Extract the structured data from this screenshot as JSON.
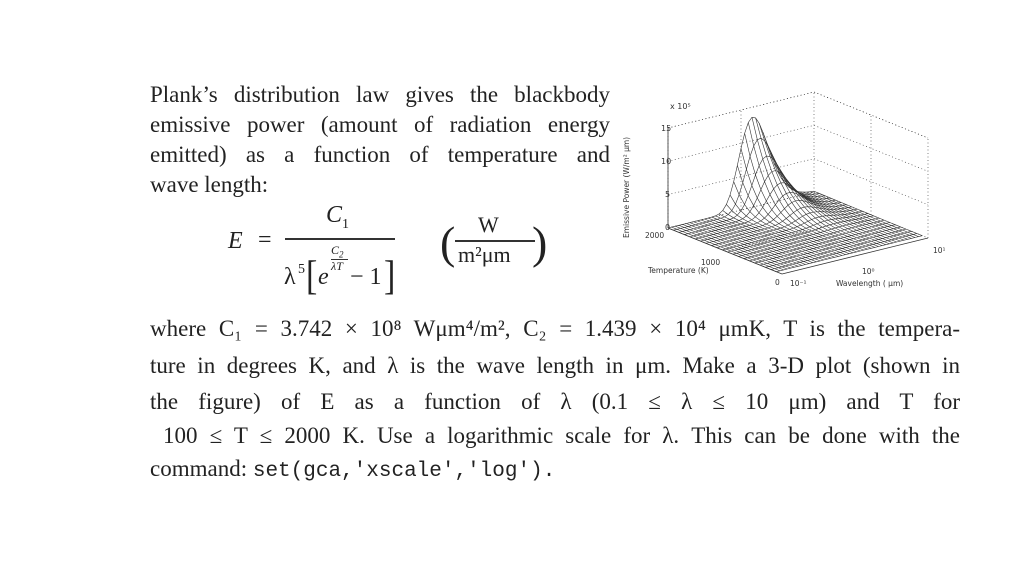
{
  "intro": {
    "lines": [
      "Plank’s distribution law gives the blackbody",
      "emissive power (amount of radiation energy",
      "emitted) as a function of temperature and",
      "wave length:"
    ]
  },
  "formula": {
    "lhs": "E",
    "equals": "=",
    "numerator": "C",
    "numerator_sub": "1",
    "denom_lambda": "λ",
    "denom_pow": "5",
    "denom_e": "e",
    "exp_num": "C",
    "exp_num_sub": "2",
    "exp_den": "λT",
    "minus_one": "− 1",
    "units_num": "W",
    "units_den": "m²μm"
  },
  "body": {
    "lines": [
      "where C₁ = 3.742 × 10⁸ Wμm⁴/m², C₂ = 1.439 × 10⁴ μmK, T is the tempera-",
      "ture in degrees K, and λ is the wave length in μm. Make a 3-D plot (shown in",
      "the figure) of E as a function of λ (0.1 ≤ λ ≤ 10 μm) and T for",
      "100 ≤ T ≤ 2000 K. Use a logarithmic scale for λ. This can be done with the"
    ],
    "last_prefix": "command: ",
    "command": "set(gca,'xscale','log')."
  },
  "figure": {
    "type": "surface",
    "zlabel": "Emissive Power (W/m² μm)",
    "z_multiplier": "x 10⁵",
    "z_ticks": [
      "0",
      "5",
      "10",
      "15"
    ],
    "ylabel": "Temperature (K)",
    "y_ticks": [
      "0",
      "1000",
      "2000"
    ],
    "xlabel": "Wavelength ( μm)",
    "x_ticks": [
      "10⁻¹",
      "10⁰",
      "10¹"
    ],
    "x_scale": "log",
    "x_range": [
      0.1,
      10
    ],
    "y_range": [
      0,
      2000
    ],
    "z_range": [
      0,
      15
    ],
    "grid": true,
    "color": "#333333"
  }
}
